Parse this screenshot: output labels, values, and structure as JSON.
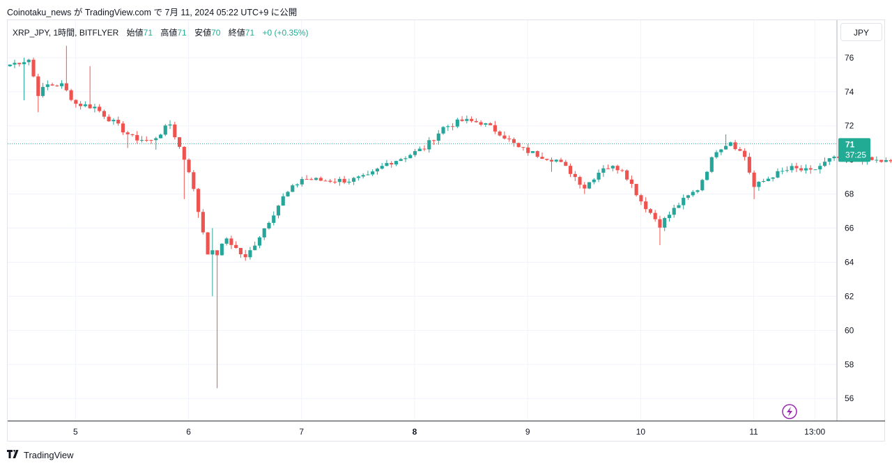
{
  "caption": "Coinotaku_news が TradingView.com で 7月 11, 2024 05:22 UTC+9 に公開",
  "legend": {
    "symbol": "XRP_JPY, 1時間, BITFLYER",
    "open_label": "始値",
    "open": "71",
    "high_label": "高値",
    "high": "71",
    "low_label": "安値",
    "low": "70",
    "close_label": "終値",
    "close": "71",
    "change": "+0 (+0.35%)"
  },
  "currency_button": "JPY",
  "price_tag": {
    "price": "71",
    "countdown": "37:25"
  },
  "brand": "TradingView",
  "colors": {
    "up": "#26a69a",
    "down": "#ef5350",
    "grid": "#f0f3fa",
    "axis_text": "#131722",
    "price_line": "#26a69a",
    "tag_bg": "#22ab94",
    "bolt": "#9c27b0"
  },
  "icons": {
    "lightning": "lightning-icon",
    "logo": "tradingview-logo-icon"
  },
  "chart_data": {
    "type": "candlestick",
    "title": "",
    "ylim": [
      54.7,
      78.2
    ],
    "y_ticks": [
      76,
      74,
      72,
      70,
      68,
      66,
      64,
      62,
      60,
      58,
      56
    ],
    "x_domain": [
      4.4,
      11.73
    ],
    "x_ticks": [
      {
        "label": "5",
        "x": 5.0,
        "bold": false
      },
      {
        "label": "6",
        "x": 6.0,
        "bold": false
      },
      {
        "label": "7",
        "x": 7.0,
        "bold": false
      },
      {
        "label": "8",
        "x": 8.0,
        "bold": true
      },
      {
        "label": "9",
        "x": 9.0,
        "bold": false
      },
      {
        "label": "10",
        "x": 10.0,
        "bold": false
      },
      {
        "label": "11",
        "x": 11.0,
        "bold": false
      },
      {
        "label": "13:00",
        "x": 11.54,
        "bold": false
      }
    ],
    "last_price": 70.95,
    "anchors": [
      [
        0,
        75.6
      ],
      [
        4,
        75.9
      ],
      [
        6,
        73.9
      ],
      [
        8,
        74.4
      ],
      [
        11,
        74.4
      ],
      [
        14,
        73.3
      ],
      [
        18,
        73.1
      ],
      [
        22,
        72.2
      ],
      [
        26,
        71.3
      ],
      [
        30,
        71.1
      ],
      [
        34,
        72.1
      ],
      [
        38,
        69.4
      ],
      [
        42,
        64.6
      ],
      [
        44,
        64.5
      ],
      [
        46,
        65.4
      ],
      [
        50,
        64.2
      ],
      [
        54,
        66.0
      ],
      [
        58,
        67.8
      ],
      [
        62,
        68.9
      ],
      [
        66,
        68.8
      ],
      [
        72,
        68.8
      ],
      [
        76,
        69.0
      ],
      [
        80,
        69.8
      ],
      [
        84,
        70.2
      ],
      [
        88,
        70.7
      ],
      [
        92,
        71.9
      ],
      [
        96,
        72.3
      ],
      [
        100,
        72.2
      ],
      [
        104,
        71.6
      ],
      [
        108,
        70.7
      ],
      [
        112,
        70.3
      ],
      [
        116,
        70.0
      ],
      [
        119,
        69.3
      ],
      [
        122,
        68.4
      ],
      [
        126,
        69.6
      ],
      [
        130,
        69.5
      ],
      [
        134,
        67.6
      ],
      [
        138,
        66.2
      ],
      [
        142,
        67.4
      ],
      [
        146,
        68.3
      ],
      [
        150,
        70.6
      ],
      [
        153,
        71.1
      ],
      [
        156,
        70.2
      ],
      [
        158,
        68.4
      ],
      [
        162,
        69.1
      ],
      [
        166,
        69.5
      ],
      [
        170,
        69.3
      ],
      [
        174,
        70.0
      ],
      [
        178,
        70.2
      ],
      [
        182,
        70.0
      ],
      [
        186,
        69.9
      ],
      [
        190,
        69.6
      ],
      [
        194,
        70.0
      ],
      [
        198,
        70.3
      ],
      [
        202,
        70.6
      ],
      [
        206,
        70.5
      ],
      [
        210,
        70.1
      ],
      [
        214,
        70.4
      ],
      [
        218,
        71.1
      ],
      [
        222,
        71.0
      ],
      [
        226,
        71.4
      ],
      [
        228,
        70.8
      ],
      [
        232,
        69.8
      ],
      [
        236,
        70.3
      ],
      [
        238,
        70.8
      ]
    ],
    "spikes": {
      "3": {
        "h": 76.0,
        "l": 73.5
      },
      "6": {
        "l": 72.8
      },
      "12": {
        "h": 76.7
      },
      "17": {
        "h": 75.5
      },
      "20": {
        "l": 72.5
      },
      "25": {
        "l": 70.7
      },
      "31": {
        "l": 70.6
      },
      "37": {
        "l": 67.7
      },
      "40": {
        "l": 66.6
      },
      "43": {
        "h": 66.0,
        "l": 62.0
      },
      "44": {
        "l": 56.6
      },
      "87": {
        "h": 70.3
      },
      "93": {
        "h": 72.0
      },
      "97": {
        "h": 72.6
      },
      "115": {
        "l": 69.3
      },
      "122": {
        "l": 68.0
      },
      "138": {
        "l": 65.0
      },
      "152": {
        "h": 71.5
      },
      "158": {
        "l": 67.7
      },
      "225": {
        "h": 71.9
      },
      "234": {
        "l": 69.6
      }
    }
  }
}
